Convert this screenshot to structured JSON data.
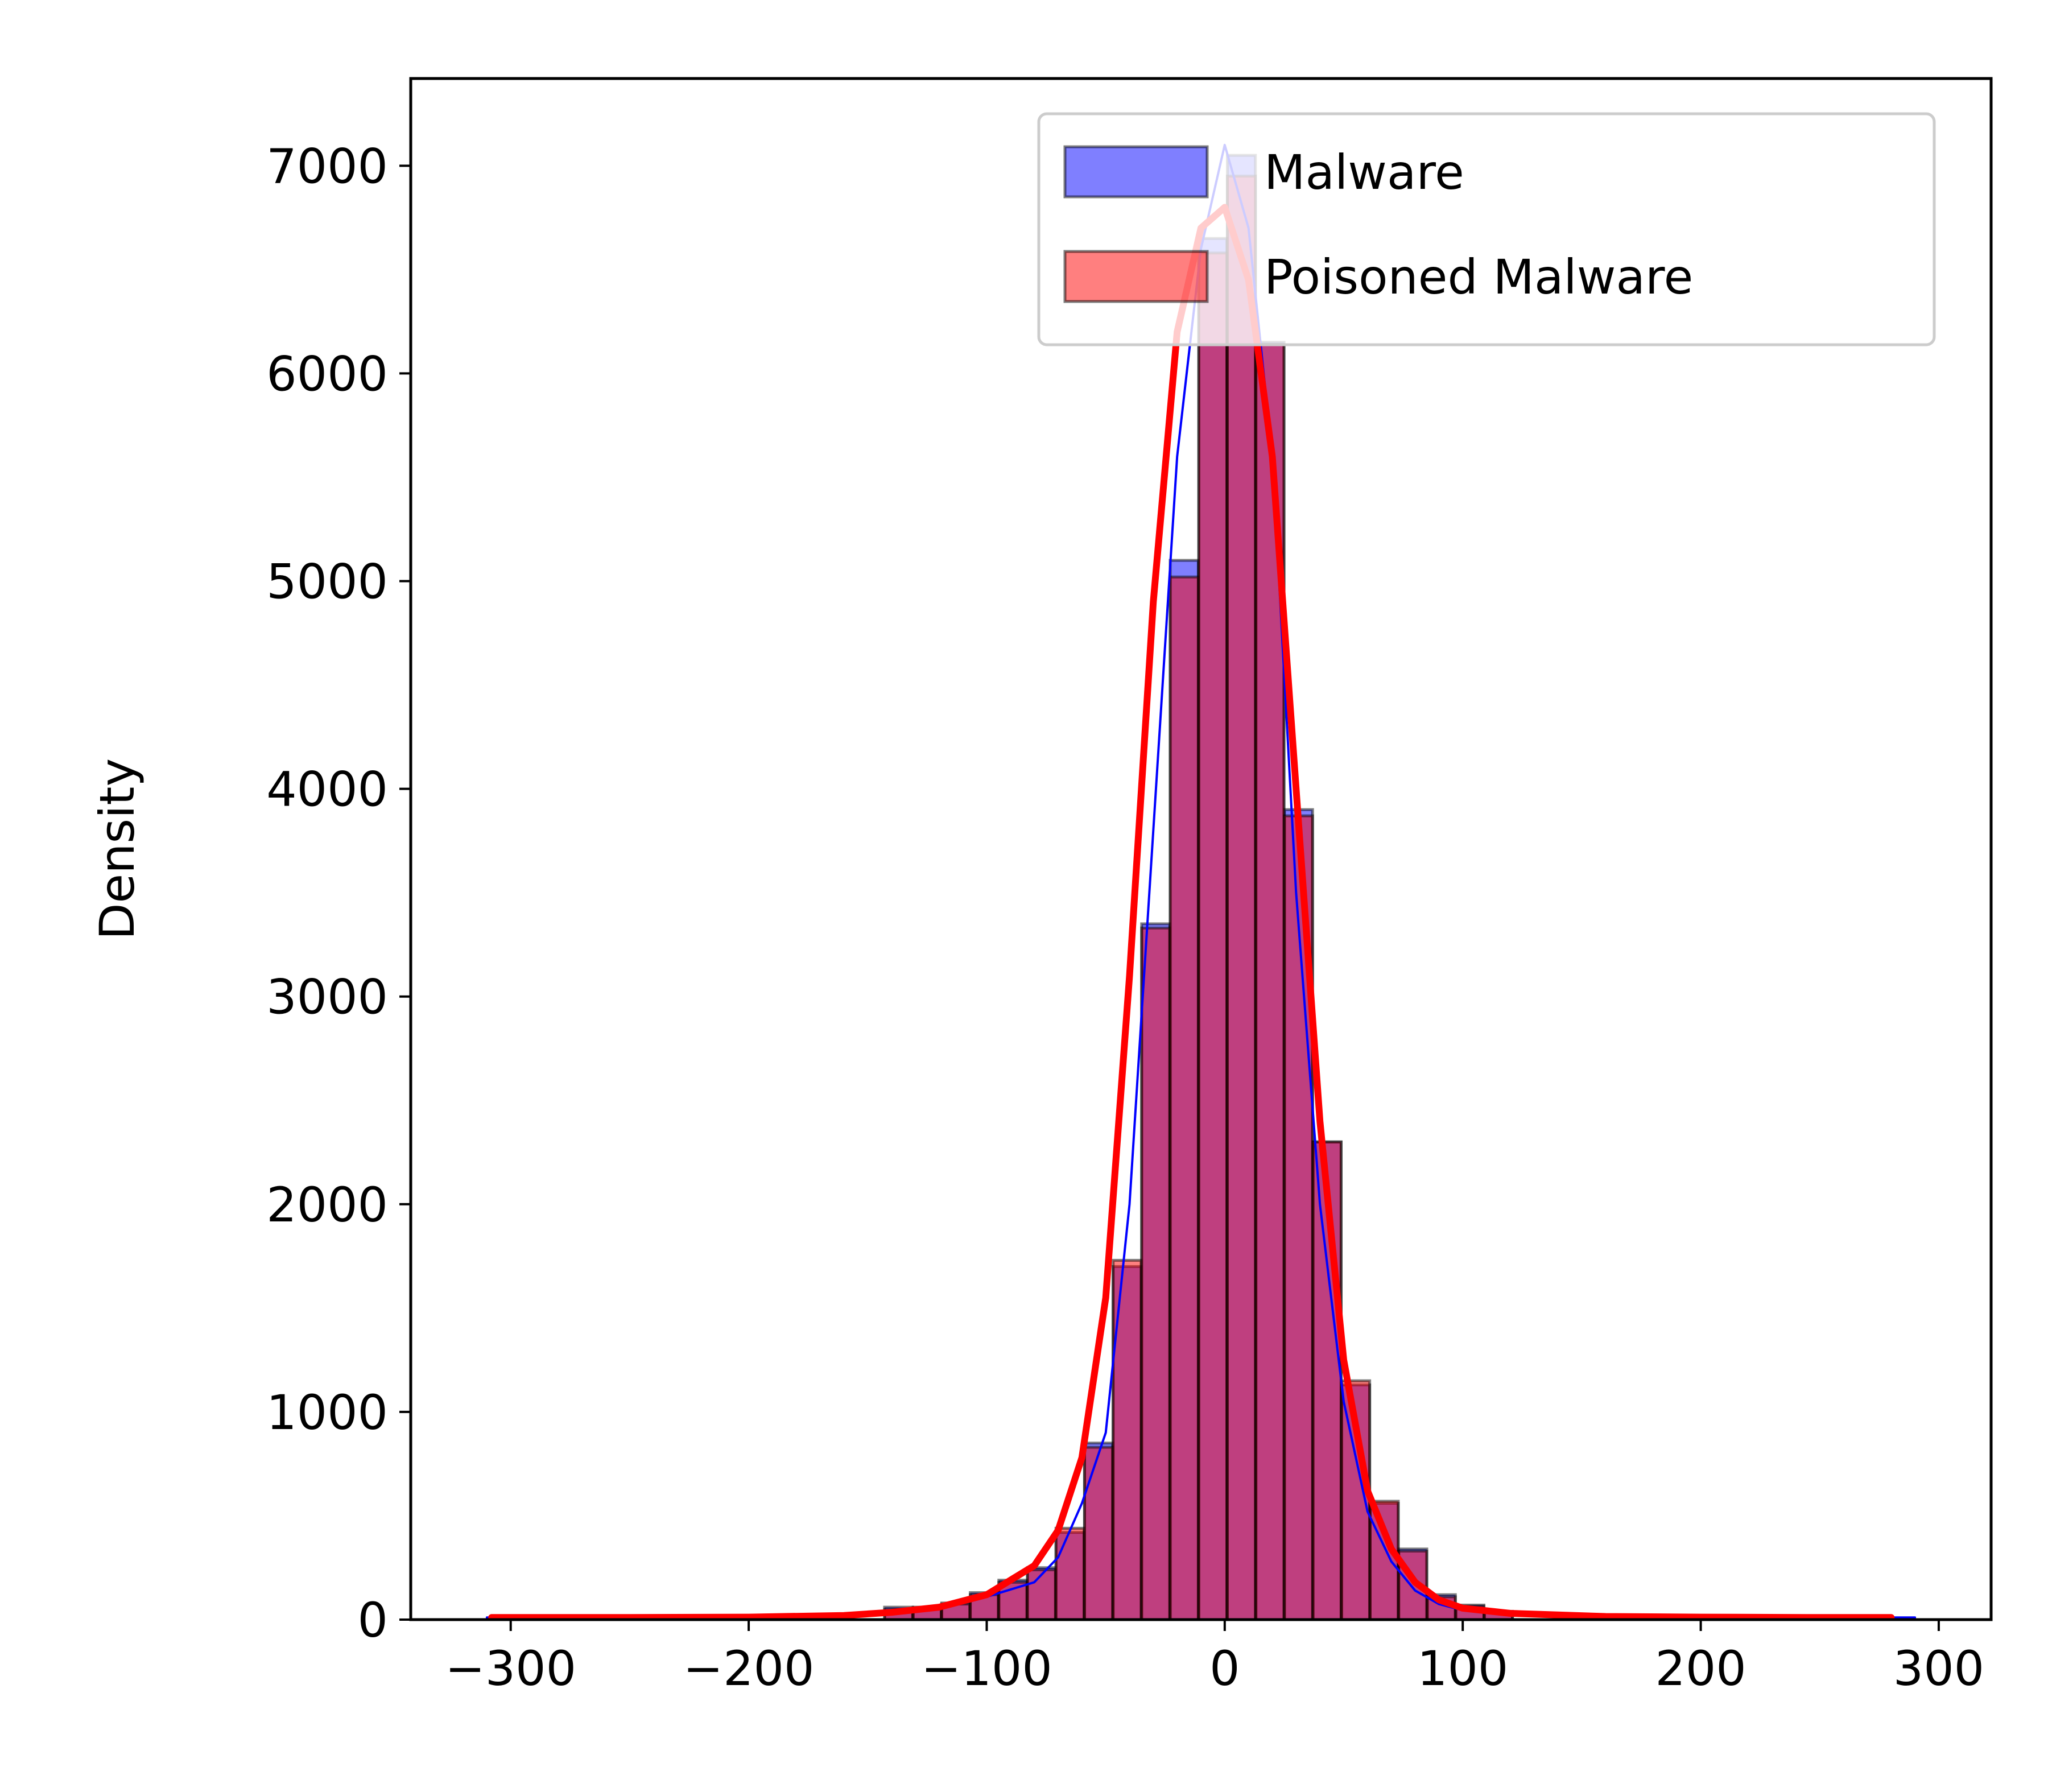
{
  "chart_data": {
    "type": "bar",
    "xlim": [
      -342,
      322
    ],
    "ylim": [
      0,
      7420
    ],
    "xticks": [
      -300,
      -200,
      -100,
      0,
      100,
      200,
      300
    ],
    "xtick_labels": [
      "−300",
      "−200",
      "−100",
      "0",
      "100",
      "200",
      "300"
    ],
    "yticks": [
      0,
      1000,
      2000,
      3000,
      4000,
      5000,
      6000,
      7000
    ],
    "ytick_labels": [
      "0",
      "1000",
      "2000",
      "3000",
      "4000",
      "5000",
      "6000",
      "7000"
    ],
    "xlabel": "",
    "ylabel": "Density",
    "legend": {
      "position": "upper right"
    },
    "bin_width": 11.8,
    "series": [
      {
        "name": "Malware",
        "color": "#0000ff",
        "bins": [
          [
            -137,
            60
          ],
          [
            -125,
            60
          ],
          [
            -113,
            80
          ],
          [
            -101,
            130
          ],
          [
            -89,
            190
          ],
          [
            -77,
            250
          ],
          [
            -65,
            420
          ],
          [
            -53,
            850
          ],
          [
            -41,
            1700
          ],
          [
            -29,
            3350
          ],
          [
            -17,
            5100
          ],
          [
            -5,
            6650
          ],
          [
            7,
            7050
          ],
          [
            19,
            6150
          ],
          [
            31,
            3900
          ],
          [
            43,
            2300
          ],
          [
            55,
            1130
          ],
          [
            67,
            560
          ],
          [
            79,
            340
          ],
          [
            91,
            120
          ],
          [
            103,
            70
          ],
          [
            115,
            40
          ]
        ],
        "kde": [
          [
            -310,
            10
          ],
          [
            -250,
            10
          ],
          [
            -200,
            12
          ],
          [
            -160,
            25
          ],
          [
            -140,
            40
          ],
          [
            -120,
            60
          ],
          [
            -100,
            110
          ],
          [
            -80,
            180
          ],
          [
            -70,
            300
          ],
          [
            -60,
            560
          ],
          [
            -50,
            900
          ],
          [
            -40,
            2000
          ],
          [
            -30,
            3800
          ],
          [
            -20,
            5600
          ],
          [
            -10,
            6600
          ],
          [
            0,
            7100
          ],
          [
            10,
            6700
          ],
          [
            20,
            5600
          ],
          [
            30,
            3500
          ],
          [
            40,
            2000
          ],
          [
            50,
            1050
          ],
          [
            60,
            520
          ],
          [
            70,
            280
          ],
          [
            80,
            140
          ],
          [
            90,
            75
          ],
          [
            100,
            45
          ],
          [
            120,
            25
          ],
          [
            160,
            15
          ],
          [
            200,
            12
          ],
          [
            250,
            10
          ],
          [
            290,
            10
          ]
        ]
      },
      {
        "name": "Poisoned Malware",
        "color": "#ff0000",
        "bins": [
          [
            -137,
            50
          ],
          [
            -125,
            55
          ],
          [
            -113,
            75
          ],
          [
            -101,
            120
          ],
          [
            -89,
            180
          ],
          [
            -77,
            240
          ],
          [
            -65,
            440
          ],
          [
            -53,
            830
          ],
          [
            -41,
            1730
          ],
          [
            -29,
            3330
          ],
          [
            -17,
            5020
          ],
          [
            -5,
            6580
          ],
          [
            7,
            6950
          ],
          [
            19,
            6140
          ],
          [
            31,
            3870
          ],
          [
            43,
            2300
          ],
          [
            55,
            1150
          ],
          [
            67,
            570
          ],
          [
            79,
            330
          ],
          [
            91,
            110
          ],
          [
            103,
            65
          ],
          [
            115,
            35
          ]
        ],
        "kde": [
          [
            -308,
            10
          ],
          [
            -250,
            10
          ],
          [
            -200,
            12
          ],
          [
            -160,
            20
          ],
          [
            -140,
            35
          ],
          [
            -120,
            60
          ],
          [
            -100,
            120
          ],
          [
            -90,
            190
          ],
          [
            -80,
            260
          ],
          [
            -70,
            430
          ],
          [
            -60,
            780
          ],
          [
            -50,
            1550
          ],
          [
            -40,
            3100
          ],
          [
            -30,
            4900
          ],
          [
            -20,
            6200
          ],
          [
            -10,
            6700
          ],
          [
            0,
            6800
          ],
          [
            10,
            6450
          ],
          [
            20,
            5600
          ],
          [
            30,
            4000
          ],
          [
            40,
            2400
          ],
          [
            50,
            1250
          ],
          [
            60,
            620
          ],
          [
            70,
            340
          ],
          [
            80,
            180
          ],
          [
            90,
            95
          ],
          [
            100,
            55
          ],
          [
            120,
            30
          ],
          [
            160,
            15
          ],
          [
            200,
            12
          ],
          [
            250,
            10
          ],
          [
            280,
            10
          ]
        ]
      }
    ]
  }
}
